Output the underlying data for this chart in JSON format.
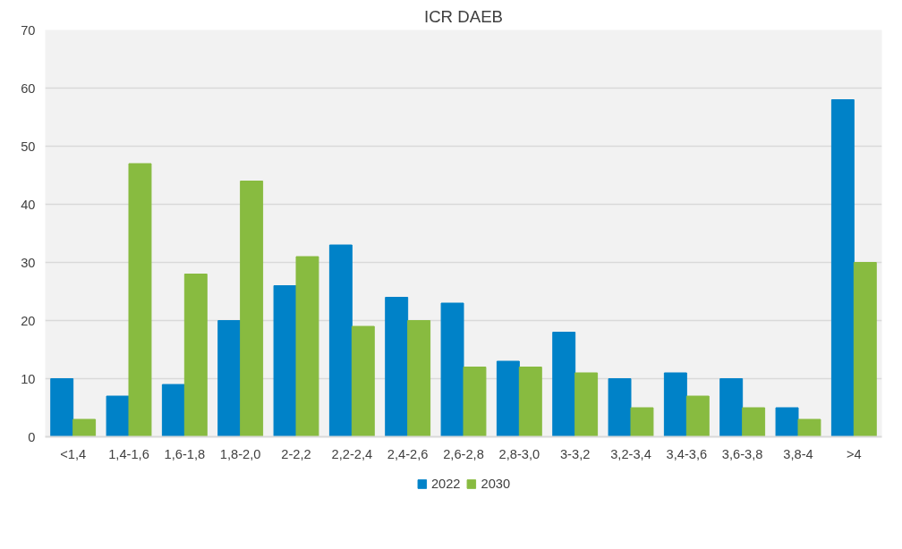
{
  "chart_data": {
    "type": "bar",
    "title": "ICR DAEB",
    "categories": [
      "<1,4",
      "1,4-1,6",
      "1,6-1,8",
      "1,8-2,0",
      "2-2,2",
      "2,2-2,4",
      "2,4-2,6",
      "2,6-2,8",
      "2,8-3,0",
      "3-3,2",
      "3,2-3,4",
      "3,4-3,6",
      "3,6-3,8",
      "3,8-4",
      ">4"
    ],
    "series": [
      {
        "name": "2022",
        "color": "#0082c8",
        "values": [
          10,
          7,
          9,
          20,
          26,
          33,
          24,
          23,
          13,
          18,
          10,
          11,
          10,
          5,
          58
        ]
      },
      {
        "name": "2030",
        "color": "#88bb40",
        "values": [
          3,
          47,
          28,
          44,
          31,
          19,
          20,
          12,
          12,
          11,
          5,
          7,
          5,
          3,
          30
        ]
      }
    ],
    "ylim": [
      0,
      70
    ],
    "yticks": [
      0,
      10,
      20,
      30,
      40,
      50,
      60,
      70
    ],
    "grid": "y",
    "legend": "bottom"
  }
}
